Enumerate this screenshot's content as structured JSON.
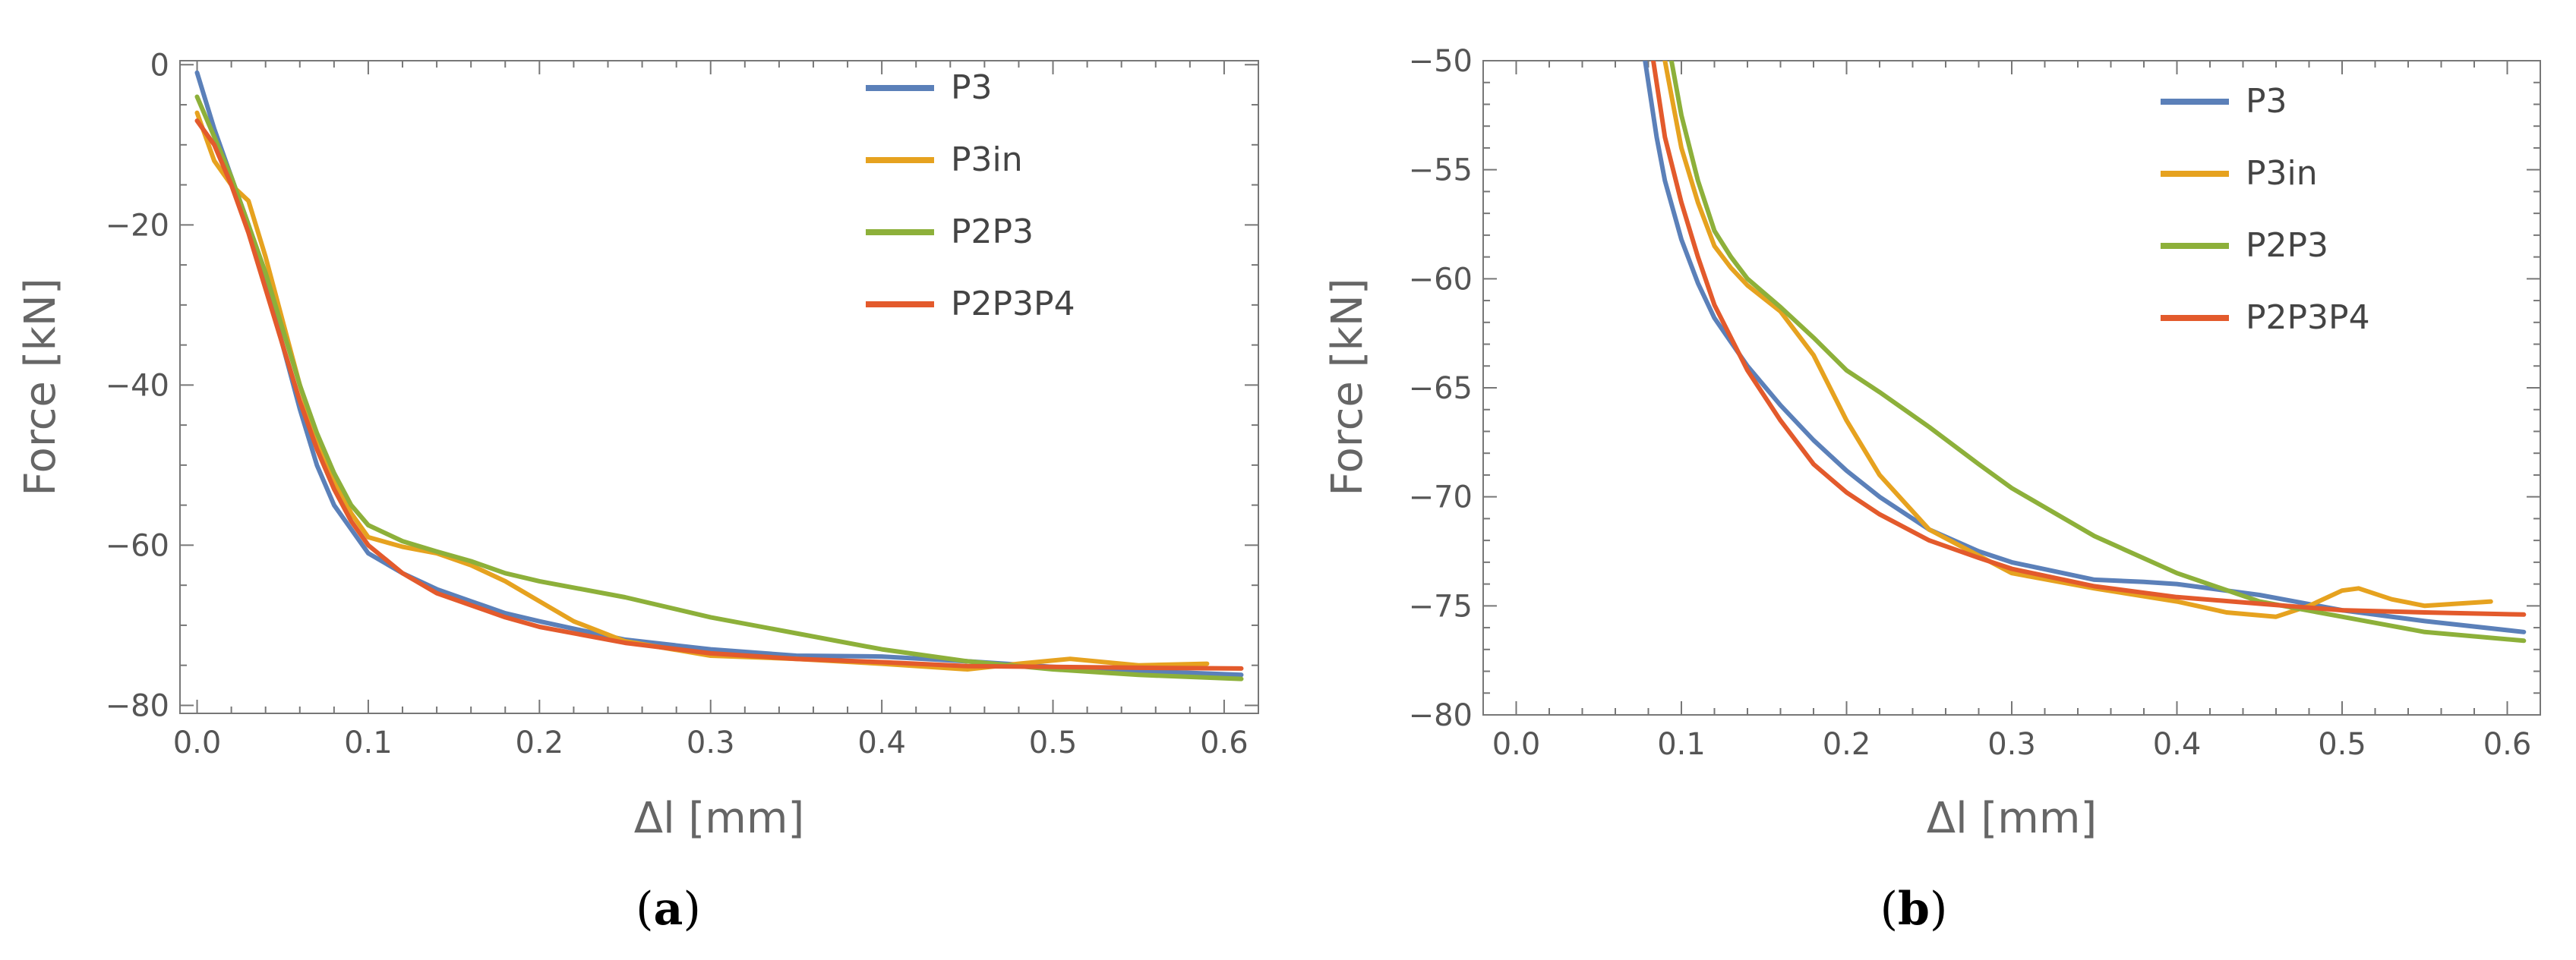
{
  "colors": {
    "P3": "#5b80b9",
    "P3in": "#e6a21f",
    "P2P3": "#8db03a",
    "P2P3P4": "#e35a2c"
  },
  "chart_data": [
    {
      "type": "line",
      "caption_letter": "a",
      "caption": "(a)",
      "xlabel": "Δl [mm]",
      "ylabel": "Force [kN]",
      "xlim": [
        -0.01,
        0.62
      ],
      "ylim": [
        -81,
        0.5
      ],
      "xticks": [
        0.0,
        0.1,
        0.2,
        0.3,
        0.4,
        0.5,
        0.6
      ],
      "xtick_labels": [
        "0.0",
        "0.1",
        "0.2",
        "0.3",
        "0.4",
        "0.5",
        "0.6"
      ],
      "yticks": [
        0,
        -20,
        -40,
        -60,
        -80
      ],
      "ytick_labels": [
        "0",
        "−20",
        "−40",
        "−60",
        "−80"
      ],
      "legend_position": "top-right",
      "series": [
        {
          "name": "P3",
          "x": [
            0.0,
            0.01,
            0.02,
            0.03,
            0.04,
            0.05,
            0.06,
            0.07,
            0.08,
            0.09,
            0.1,
            0.12,
            0.14,
            0.16,
            0.18,
            0.2,
            0.25,
            0.3,
            0.35,
            0.4,
            0.45,
            0.5,
            0.55,
            0.61
          ],
          "y": [
            -1,
            -8,
            -14,
            -20,
            -27,
            -35,
            -43,
            -50,
            -55,
            -58,
            -61,
            -63.5,
            -65.5,
            -67,
            -68.5,
            -69.5,
            -71.8,
            -73,
            -73.8,
            -73.9,
            -74.5,
            -75.2,
            -75.7,
            -76.2
          ]
        },
        {
          "name": "P3in",
          "x": [
            0.0,
            0.01,
            0.02,
            0.03,
            0.04,
            0.05,
            0.06,
            0.07,
            0.08,
            0.09,
            0.1,
            0.12,
            0.14,
            0.16,
            0.18,
            0.2,
            0.22,
            0.25,
            0.3,
            0.35,
            0.4,
            0.45,
            0.48,
            0.51,
            0.55,
            0.59
          ],
          "y": [
            -6,
            -12,
            -15,
            -17,
            -24,
            -32,
            -40,
            -47,
            -52,
            -56,
            -59,
            -60.2,
            -61,
            -62.5,
            -64.5,
            -67,
            -69.5,
            -72,
            -73.8,
            -74.2,
            -74.8,
            -75.5,
            -74.8,
            -74.2,
            -75,
            -74.8
          ]
        },
        {
          "name": "P2P3",
          "x": [
            0.0,
            0.01,
            0.02,
            0.03,
            0.04,
            0.05,
            0.06,
            0.07,
            0.08,
            0.09,
            0.1,
            0.12,
            0.14,
            0.16,
            0.18,
            0.2,
            0.25,
            0.3,
            0.35,
            0.4,
            0.45,
            0.5,
            0.55,
            0.61
          ],
          "y": [
            -4,
            -9,
            -14,
            -20,
            -26,
            -33,
            -40,
            -46,
            -51,
            -55,
            -57.5,
            -59.5,
            -60.8,
            -62,
            -63.5,
            -64.5,
            -66.5,
            -69,
            -71,
            -73,
            -74.5,
            -75.5,
            -76.2,
            -76.7
          ]
        },
        {
          "name": "P2P3P4",
          "x": [
            0.0,
            0.01,
            0.02,
            0.03,
            0.04,
            0.05,
            0.06,
            0.07,
            0.08,
            0.09,
            0.1,
            0.12,
            0.14,
            0.16,
            0.18,
            0.2,
            0.25,
            0.3,
            0.35,
            0.4,
            0.45,
            0.5,
            0.55,
            0.61
          ],
          "y": [
            -7,
            -10,
            -15,
            -21,
            -28,
            -35,
            -42,
            -48,
            -53,
            -57,
            -60,
            -63.5,
            -66,
            -67.5,
            -69,
            -70.2,
            -72.2,
            -73.5,
            -74.2,
            -74.6,
            -75.1,
            -75.2,
            -75.3,
            -75.4
          ]
        }
      ]
    },
    {
      "type": "line",
      "caption_letter": "b",
      "caption": "(b)",
      "xlabel": "Δl [mm]",
      "ylabel": "Force [kN]",
      "xlim": [
        -0.02,
        0.62
      ],
      "ylim": [
        -80,
        -50
      ],
      "xticks": [
        0.0,
        0.1,
        0.2,
        0.3,
        0.4,
        0.5,
        0.6
      ],
      "xtick_labels": [
        "0.0",
        "0.1",
        "0.2",
        "0.3",
        "0.4",
        "0.5",
        "0.6"
      ],
      "yticks": [
        -50,
        -55,
        -60,
        -65,
        -70,
        -75,
        -80
      ],
      "ytick_labels": [
        "−50",
        "−55",
        "−60",
        "−65",
        "−70",
        "−75",
        "−80"
      ],
      "legend_position": "top-right",
      "series": [
        {
          "name": "P3",
          "x": [
            0.078,
            0.085,
            0.09,
            0.1,
            0.11,
            0.12,
            0.14,
            0.16,
            0.18,
            0.2,
            0.22,
            0.25,
            0.28,
            0.3,
            0.35,
            0.38,
            0.4,
            0.45,
            0.5,
            0.55,
            0.61
          ],
          "y": [
            -50,
            -53.5,
            -55.5,
            -58.2,
            -60.2,
            -61.8,
            -64,
            -65.8,
            -67.4,
            -68.8,
            -70,
            -71.5,
            -72.5,
            -73,
            -73.8,
            -73.9,
            -74,
            -74.5,
            -75.2,
            -75.7,
            -76.2
          ]
        },
        {
          "name": "P3in",
          "x": [
            0.09,
            0.095,
            0.1,
            0.11,
            0.12,
            0.13,
            0.14,
            0.16,
            0.18,
            0.2,
            0.22,
            0.25,
            0.28,
            0.3,
            0.35,
            0.4,
            0.43,
            0.46,
            0.48,
            0.5,
            0.51,
            0.53,
            0.55,
            0.59
          ],
          "y": [
            -50,
            -52,
            -54,
            -56.5,
            -58.5,
            -59.5,
            -60.3,
            -61.5,
            -63.5,
            -66.5,
            -69,
            -71.5,
            -72.7,
            -73.5,
            -74.2,
            -74.8,
            -75.3,
            -75.5,
            -75,
            -74.3,
            -74.2,
            -74.7,
            -75,
            -74.8
          ]
        },
        {
          "name": "P2P3",
          "x": [
            0.094,
            0.1,
            0.11,
            0.12,
            0.13,
            0.14,
            0.16,
            0.18,
            0.2,
            0.22,
            0.25,
            0.28,
            0.3,
            0.35,
            0.4,
            0.45,
            0.5,
            0.55,
            0.61
          ],
          "y": [
            -50,
            -52.5,
            -55.5,
            -57.8,
            -59,
            -60,
            -61.3,
            -62.7,
            -64.2,
            -65.2,
            -66.8,
            -68.5,
            -69.6,
            -71.8,
            -73.5,
            -74.8,
            -75.5,
            -76.2,
            -76.6
          ]
        },
        {
          "name": "P2P3P4",
          "x": [
            0.083,
            0.09,
            0.1,
            0.11,
            0.12,
            0.14,
            0.16,
            0.18,
            0.2,
            0.22,
            0.25,
            0.28,
            0.3,
            0.35,
            0.4,
            0.45,
            0.5,
            0.55,
            0.61
          ],
          "y": [
            -50,
            -53.5,
            -56.5,
            -59,
            -61.2,
            -64.2,
            -66.5,
            -68.5,
            -69.8,
            -70.8,
            -72,
            -72.8,
            -73.3,
            -74.1,
            -74.6,
            -74.9,
            -75.2,
            -75.3,
            -75.4
          ]
        }
      ]
    }
  ]
}
